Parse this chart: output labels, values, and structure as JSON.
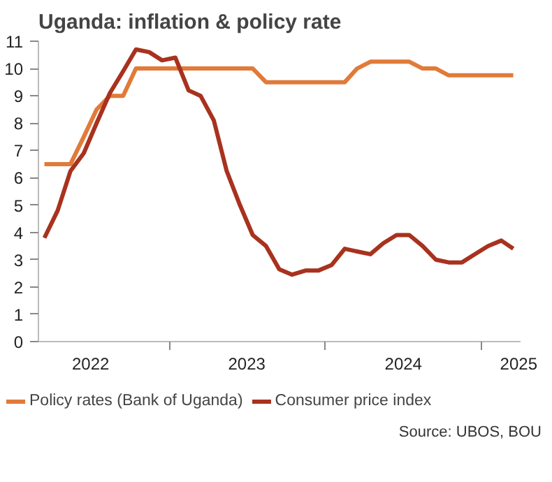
{
  "chart_data": {
    "type": "line",
    "title": "Uganda: inflation & policy rate",
    "x": [
      "2022-03-15",
      "2022-04-15",
      "2022-05-15",
      "2022-06-15",
      "2022-07-15",
      "2022-08-15",
      "2022-09-15",
      "2022-10-15",
      "2022-11-15",
      "2022-12-15",
      "2023-01-15",
      "2023-02-15",
      "2023-03-15",
      "2023-04-15",
      "2023-05-15",
      "2023-06-15",
      "2023-07-15",
      "2023-08-15",
      "2023-09-15",
      "2023-10-15",
      "2023-11-15",
      "2023-12-15",
      "2024-01-15",
      "2024-02-15",
      "2024-03-15",
      "2024-04-15",
      "2024-05-15",
      "2024-06-15",
      "2024-07-15",
      "2024-08-15",
      "2024-09-15",
      "2024-10-15",
      "2024-11-15",
      "2024-12-15",
      "2025-01-15",
      "2025-02-15",
      "2025-03-15"
    ],
    "series": [
      {
        "name": "Policy rates (Bank of Uganda)",
        "color": "#e07b39",
        "values": [
          6.5,
          6.5,
          6.5,
          7.5,
          8.5,
          9.0,
          9.0,
          10,
          10,
          10,
          10,
          10,
          10,
          10,
          10,
          10,
          10,
          9.5,
          9.5,
          9.5,
          9.5,
          9.5,
          9.5,
          9.5,
          10.0,
          10.25,
          10.25,
          10.25,
          10.25,
          10.0,
          10.0,
          9.75,
          9.75,
          9.75,
          9.75,
          9.75,
          9.75
        ]
      },
      {
        "name": "Consumer price index",
        "color": "#a8321e",
        "values": [
          3.8,
          4.8,
          6.25,
          6.9,
          8.0,
          9.1,
          9.9,
          10.7,
          10.6,
          10.3,
          10.4,
          9.2,
          9.0,
          8.1,
          6.25,
          5.0,
          3.9,
          3.5,
          2.65,
          2.45,
          2.6,
          2.6,
          2.8,
          3.4,
          3.3,
          3.2,
          3.6,
          3.9,
          3.9,
          3.5,
          3.0,
          2.9,
          2.9,
          3.2,
          3.5,
          3.7,
          3.4
        ]
      }
    ],
    "xlim": [
      "2022-03-01",
      "2025-04-01"
    ],
    "xticks": [
      {
        "value": "2022-07-01",
        "label": "2022"
      },
      {
        "value": "2023-01-01",
        "label": null
      },
      {
        "value": "2023-07-01",
        "label": "2023"
      },
      {
        "value": "2024-01-01",
        "label": null
      },
      {
        "value": "2024-07-01",
        "label": "2024"
      },
      {
        "value": "2025-01-01",
        "label": null
      },
      {
        "value": "2025-04-01",
        "label": "2025"
      }
    ],
    "ylim": [
      0,
      11
    ],
    "yticks": [
      0,
      1,
      2,
      3,
      4,
      5,
      6,
      7,
      8,
      9,
      10,
      11
    ],
    "grid": false,
    "legend": "bottom",
    "marker": "none",
    "line_style": "solid",
    "annotations": [
      "Source: UBOS, BOU"
    ]
  }
}
